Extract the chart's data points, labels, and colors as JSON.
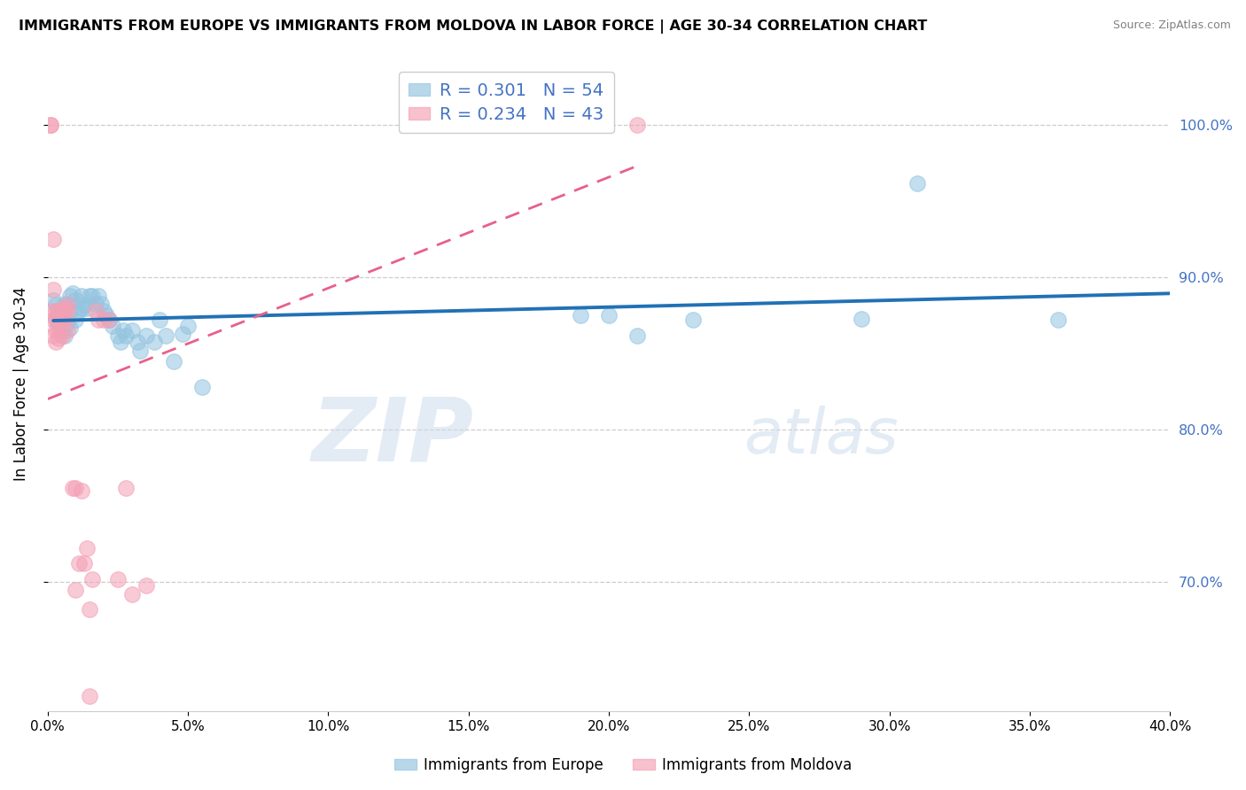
{
  "title": "IMMIGRANTS FROM EUROPE VS IMMIGRANTS FROM MOLDOVA IN LABOR FORCE | AGE 30-34 CORRELATION CHART",
  "source": "Source: ZipAtlas.com",
  "ylabel": "In Labor Force | Age 30-34",
  "legend_europe": "Immigrants from Europe",
  "legend_moldova": "Immigrants from Moldova",
  "r_europe": 0.301,
  "n_europe": 54,
  "r_moldova": 0.234,
  "n_moldova": 43,
  "xlim": [
    0.0,
    0.4
  ],
  "ylim": [
    0.615,
    1.045
  ],
  "xticks": [
    0.0,
    0.05,
    0.1,
    0.15,
    0.2,
    0.25,
    0.3,
    0.35,
    0.4
  ],
  "yticks": [
    0.7,
    0.8,
    0.9,
    1.0
  ],
  "color_europe": "#93c4e0",
  "color_moldova": "#f4a0b5",
  "trendline_europe_color": "#2171b5",
  "trendline_moldova_color": "#e8608a",
  "europe_x": [
    0.002,
    0.003,
    0.003,
    0.004,
    0.004,
    0.005,
    0.005,
    0.005,
    0.006,
    0.006,
    0.007,
    0.007,
    0.008,
    0.008,
    0.008,
    0.009,
    0.01,
    0.01,
    0.011,
    0.012,
    0.012,
    0.013,
    0.014,
    0.015,
    0.016,
    0.017,
    0.018,
    0.019,
    0.02,
    0.021,
    0.022,
    0.023,
    0.025,
    0.026,
    0.027,
    0.028,
    0.03,
    0.032,
    0.033,
    0.035,
    0.038,
    0.04,
    0.042,
    0.045,
    0.048,
    0.05,
    0.055,
    0.19,
    0.2,
    0.21,
    0.23,
    0.29,
    0.31,
    0.36
  ],
  "europe_y": [
    0.885,
    0.882,
    0.873,
    0.878,
    0.87,
    0.878,
    0.876,
    0.865,
    0.883,
    0.862,
    0.882,
    0.87,
    0.888,
    0.878,
    0.867,
    0.89,
    0.885,
    0.872,
    0.878,
    0.888,
    0.88,
    0.882,
    0.88,
    0.888,
    0.888,
    0.883,
    0.888,
    0.883,
    0.878,
    0.875,
    0.872,
    0.868,
    0.862,
    0.858,
    0.865,
    0.862,
    0.865,
    0.858,
    0.852,
    0.862,
    0.858,
    0.872,
    0.862,
    0.845,
    0.863,
    0.868,
    0.828,
    0.875,
    0.875,
    0.862,
    0.872,
    0.873,
    0.962,
    0.872
  ],
  "moldova_x": [
    0.001,
    0.001,
    0.001,
    0.002,
    0.002,
    0.002,
    0.002,
    0.003,
    0.003,
    0.003,
    0.003,
    0.004,
    0.004,
    0.004,
    0.005,
    0.005,
    0.005,
    0.006,
    0.006,
    0.007,
    0.007,
    0.007,
    0.009,
    0.01,
    0.01,
    0.011,
    0.012,
    0.013,
    0.014,
    0.015,
    0.015,
    0.016,
    0.017,
    0.018,
    0.02,
    0.022,
    0.025,
    0.028,
    0.03,
    0.035,
    0.17,
    0.19,
    0.21
  ],
  "moldova_y": [
    1.0,
    1.0,
    0.878,
    0.925,
    0.892,
    0.872,
    0.862,
    0.872,
    0.878,
    0.865,
    0.858,
    0.878,
    0.865,
    0.86,
    0.872,
    0.862,
    0.878,
    0.88,
    0.872,
    0.878,
    0.865,
    0.882,
    0.762,
    0.762,
    0.695,
    0.712,
    0.76,
    0.712,
    0.722,
    0.625,
    0.682,
    0.702,
    0.878,
    0.872,
    0.872,
    0.872,
    0.702,
    0.762,
    0.692,
    0.698,
    1.0,
    1.0,
    1.0
  ]
}
